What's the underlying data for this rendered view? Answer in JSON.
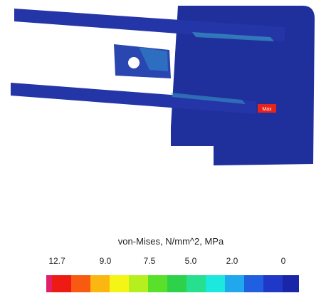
{
  "result_plot": {
    "max_marker": "Max"
  },
  "legend": {
    "title": "von-Mises, N/mm^2, MPa",
    "tick_labels": [
      "12.7",
      "9.0",
      "7.5",
      "5.0",
      "2.0",
      "0"
    ]
  }
}
